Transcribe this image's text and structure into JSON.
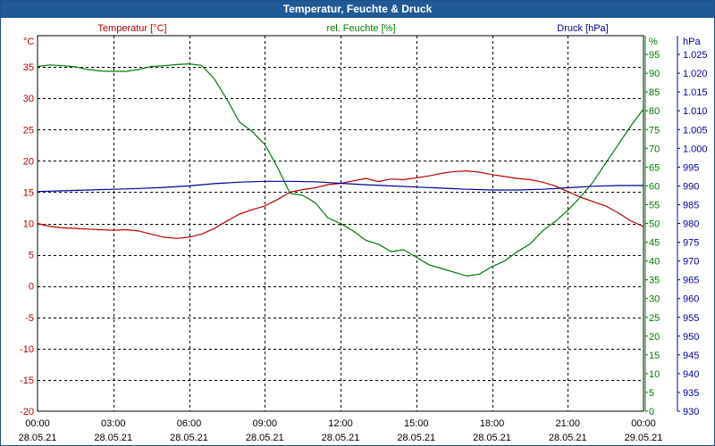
{
  "window": {
    "title": "Temperatur, Feuchte & Druck"
  },
  "colors": {
    "temperature": "#b80000",
    "humidity": "#007a00",
    "pressure": "#000099",
    "grid": "#000000",
    "titlebar": "#1f5a96"
  },
  "chart_data": {
    "type": "line",
    "title": "Temperatur, Feuchte & Druck",
    "x_tick_labels": [
      {
        "time": "00:00",
        "date": "28.05.21"
      },
      {
        "time": "03:00",
        "date": "28.05.21"
      },
      {
        "time": "06:00",
        "date": "28.05.21"
      },
      {
        "time": "09:00",
        "date": "28.05.21"
      },
      {
        "time": "12:00",
        "date": "28.05.21"
      },
      {
        "time": "15:00",
        "date": "28.05.21"
      },
      {
        "time": "18:00",
        "date": "28.05.21"
      },
      {
        "time": "21:00",
        "date": "28.05.21"
      },
      {
        "time": "00:00",
        "date": "29.05.21"
      }
    ],
    "x_range_hours": [
      0,
      24
    ],
    "axes": {
      "temperature": {
        "label": "Temperatur [°C]",
        "unit": "°C",
        "min": -20,
        "max": 40,
        "step": 5
      },
      "humidity": {
        "label": "rel. Feuchte [%]",
        "unit": "%",
        "min": 0,
        "max": 100,
        "step": 5
      },
      "pressure": {
        "label": "Druck [hPa]",
        "unit": "hPa",
        "min": 930,
        "max": 1030,
        "step": 5,
        "decimal_comma": true
      }
    },
    "series": [
      {
        "name": "Temperatur [°C]",
        "axis": "temperature",
        "x": [
          0,
          0.5,
          1,
          1.5,
          2,
          2.5,
          3,
          3.5,
          4,
          4.5,
          5,
          5.5,
          6,
          6.5,
          7,
          7.5,
          8,
          8.5,
          9,
          9.5,
          10,
          10.5,
          11,
          11.5,
          12,
          12.5,
          13,
          13.5,
          14,
          14.5,
          15,
          15.5,
          16,
          16.5,
          17,
          17.5,
          18,
          18.5,
          19,
          19.5,
          20,
          20.5,
          21,
          21.5,
          22,
          22.5,
          23,
          23.5,
          24
        ],
        "y": [
          10,
          9.5,
          9.3,
          9.2,
          9.1,
          9,
          8.9,
          9,
          8.8,
          8.3,
          7.8,
          7.6,
          7.8,
          8.3,
          9.2,
          10.4,
          11.5,
          12.2,
          12.8,
          13.8,
          15,
          15.4,
          15.7,
          16.2,
          16.4,
          16.8,
          17.2,
          16.7,
          17.1,
          17,
          17.3,
          17.6,
          18,
          18.3,
          18.4,
          18.2,
          17.8,
          17.5,
          17.2,
          17,
          16.6,
          16,
          15.1,
          14.2,
          13.5,
          12.8,
          11.7,
          10.4,
          9.5
        ]
      },
      {
        "name": "rel. Feuchte [%]",
        "axis": "humidity",
        "x": [
          0,
          0.5,
          1,
          1.5,
          2,
          2.5,
          3,
          3.5,
          4,
          4.5,
          5,
          5.5,
          6,
          6.5,
          7,
          7.5,
          8,
          8.5,
          9,
          9.5,
          10,
          10.5,
          11,
          11.5,
          12,
          12.5,
          13,
          13.5,
          14,
          14.5,
          15,
          15.5,
          16,
          16.5,
          17,
          17.5,
          18,
          18.5,
          19,
          19.5,
          20,
          20.5,
          21,
          21.5,
          22,
          22.5,
          23,
          23.5,
          24
        ],
        "y": [
          91.8,
          92.2,
          92,
          91.7,
          91,
          90.6,
          90.5,
          90.5,
          91,
          91.8,
          92,
          92.3,
          92.5,
          92.1,
          88.5,
          83,
          77,
          74.5,
          71,
          65,
          58,
          57.5,
          55.5,
          51.5,
          50,
          48,
          45.5,
          44.5,
          42.5,
          43,
          41,
          39,
          38,
          37,
          36,
          36.5,
          38.5,
          40,
          42.5,
          44.5,
          48,
          50.5,
          53.5,
          57,
          61,
          66,
          71,
          76,
          80.5
        ]
      },
      {
        "name": "Druck [hPa]",
        "axis": "pressure",
        "x": [
          0,
          1,
          2,
          3,
          4,
          5,
          6,
          7,
          8,
          9,
          10,
          11,
          12,
          13,
          14,
          15,
          16,
          17,
          18,
          19,
          20,
          21,
          22,
          23,
          24
        ],
        "y": [
          988.5,
          988.7,
          988.9,
          989.1,
          989.3,
          989.6,
          990,
          990.6,
          991,
          991.2,
          991.2,
          991.1,
          990.7,
          990.3,
          990,
          989.7,
          989.4,
          989.1,
          988.9,
          988.9,
          989.1,
          989.5,
          989.9,
          990.1,
          990.1
        ]
      }
    ]
  }
}
